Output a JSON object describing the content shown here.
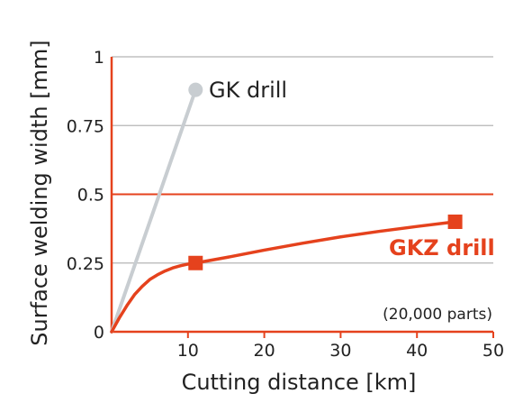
{
  "colors": {
    "accent": "#e5421d",
    "gk_series": "#c8cdd1",
    "grid": "#b5b5b5",
    "axis": "#e5421d",
    "text": "#222222"
  },
  "chart_data": {
    "type": "line",
    "xlabel": "Cutting distance [km]",
    "ylabel": "Surface welding width [mm]",
    "xlim": [
      0,
      50
    ],
    "ylim": [
      0,
      1
    ],
    "x_ticks": [
      {
        "value": 10,
        "label": "10"
      },
      {
        "value": 20,
        "label": "20"
      },
      {
        "value": 30,
        "label": "30"
      },
      {
        "value": 40,
        "label": "40"
      },
      {
        "value": 50,
        "label": "50"
      }
    ],
    "y_ticks": [
      {
        "value": 0,
        "label": "0"
      },
      {
        "value": 0.25,
        "label": "0.25"
      },
      {
        "value": 0.5,
        "label": "0.5"
      },
      {
        "value": 0.75,
        "label": "0.75"
      },
      {
        "value": 1,
        "label": "1"
      }
    ],
    "highlight_y": 0.5,
    "grid": true,
    "annotation": "(20,000 parts)",
    "series": [
      {
        "name": "GK drill",
        "color": "#c8cdd1",
        "marker": "circle",
        "points": [
          [
            0,
            0
          ],
          [
            11,
            0.88
          ]
        ],
        "marker_points": [
          [
            11,
            0.88
          ]
        ],
        "curve": [
          [
            0,
            0
          ],
          [
            11,
            0.88
          ]
        ]
      },
      {
        "name": "GKZ drill",
        "color": "#e5421d",
        "marker": "square",
        "points": [
          [
            0,
            0
          ],
          [
            11,
            0.25
          ],
          [
            45,
            0.4
          ]
        ],
        "marker_points": [
          [
            11,
            0.25
          ],
          [
            45,
            0.4
          ]
        ],
        "curve": [
          [
            0,
            0
          ],
          [
            1,
            0.05
          ],
          [
            2,
            0.095
          ],
          [
            3,
            0.135
          ],
          [
            4,
            0.165
          ],
          [
            5,
            0.19
          ],
          [
            6,
            0.207
          ],
          [
            7,
            0.221
          ],
          [
            8,
            0.232
          ],
          [
            9,
            0.24
          ],
          [
            10,
            0.246
          ],
          [
            11,
            0.25
          ],
          [
            15,
            0.27
          ],
          [
            20,
            0.297
          ],
          [
            25,
            0.322
          ],
          [
            30,
            0.345
          ],
          [
            35,
            0.365
          ],
          [
            40,
            0.383
          ],
          [
            45,
            0.4
          ]
        ]
      }
    ]
  }
}
